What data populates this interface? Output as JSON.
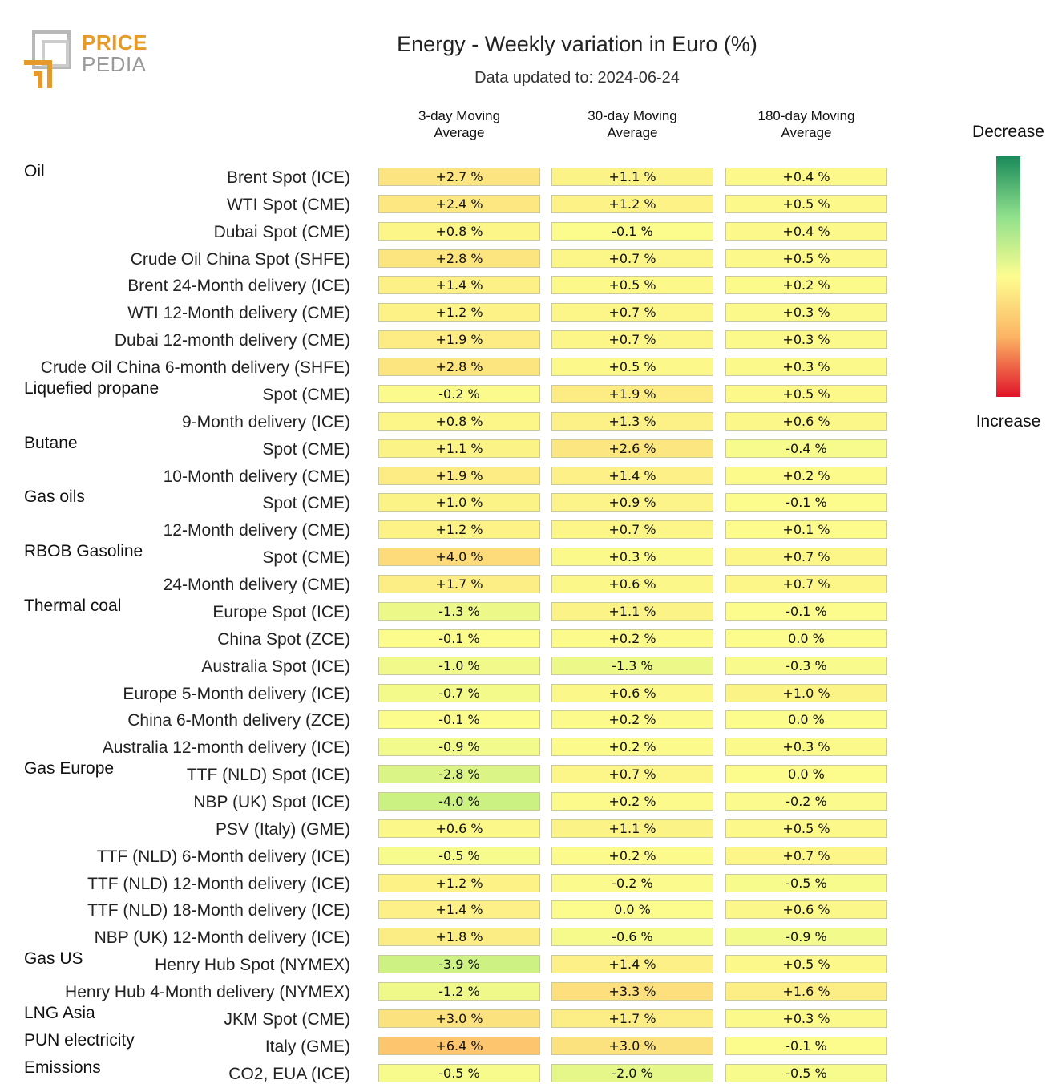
{
  "logo": {
    "line1": "PRICE",
    "line2": "PEDIA"
  },
  "title": "Energy - Weekly variation in Euro (%)",
  "subtitle": "Data updated to: 2024-06-24",
  "legend": {
    "top_label": "Decrease",
    "bottom_label": "Increase"
  },
  "chart_data": {
    "type": "heatmap",
    "title": "Energy - Weekly variation in Euro (%)",
    "subtitle": "Data updated to: 2024-06-24",
    "columns": [
      "3-day Moving\nAverage",
      "30-day Moving\nAverage",
      "180-day Moving\nAverage"
    ],
    "unit": "%",
    "color_scale": {
      "negative": "Decrease",
      "positive": "Increase"
    },
    "groups": [
      {
        "name": "Oil",
        "rows": [
          {
            "label": "Brent Spot (ICE)",
            "values": [
              2.7,
              1.1,
              0.4
            ]
          },
          {
            "label": "WTI Spot (CME)",
            "values": [
              2.4,
              1.2,
              0.5
            ]
          },
          {
            "label": "Dubai Spot (CME)",
            "values": [
              0.8,
              -0.1,
              0.4
            ]
          },
          {
            "label": "Crude Oil China Spot (SHFE)",
            "values": [
              2.8,
              0.7,
              0.5
            ]
          },
          {
            "label": "Brent 24-Month delivery (ICE)",
            "values": [
              1.4,
              0.5,
              0.2
            ]
          },
          {
            "label": "WTI 12-Month delivery (CME)",
            "values": [
              1.2,
              0.7,
              0.3
            ]
          },
          {
            "label": "Dubai 12-month delivery (CME)",
            "values": [
              1.9,
              0.7,
              0.3
            ]
          },
          {
            "label": "Crude Oil China 6-month delivery (SHFE)",
            "values": [
              2.8,
              0.5,
              0.3
            ]
          }
        ]
      },
      {
        "name": "Liquefied propane",
        "rows": [
          {
            "label": "Spot (CME)",
            "values": [
              -0.2,
              1.9,
              0.5
            ]
          },
          {
            "label": "9-Month delivery (ICE)",
            "values": [
              0.8,
              1.3,
              0.6
            ]
          }
        ]
      },
      {
        "name": "Butane",
        "rows": [
          {
            "label": "Spot (CME)",
            "values": [
              1.1,
              2.6,
              -0.4
            ]
          },
          {
            "label": "10-Month delivery (CME)",
            "values": [
              1.9,
              1.4,
              0.2
            ]
          }
        ]
      },
      {
        "name": "Gas oils",
        "rows": [
          {
            "label": "Spot (CME)",
            "values": [
              1.0,
              0.9,
              -0.1
            ]
          },
          {
            "label": "12-Month delivery (CME)",
            "values": [
              1.2,
              0.7,
              0.1
            ]
          }
        ]
      },
      {
        "name": "RBOB Gasoline",
        "rows": [
          {
            "label": "Spot (CME)",
            "values": [
              4.0,
              0.3,
              0.7
            ]
          },
          {
            "label": "24-Month delivery (CME)",
            "values": [
              1.7,
              0.6,
              0.7
            ]
          }
        ]
      },
      {
        "name": "Thermal coal",
        "rows": [
          {
            "label": "Europe Spot (ICE)",
            "values": [
              -1.3,
              1.1,
              -0.1
            ]
          },
          {
            "label": "China Spot (ZCE)",
            "values": [
              -0.1,
              0.2,
              0.0
            ]
          },
          {
            "label": "Australia Spot (ICE)",
            "values": [
              -1.0,
              -1.3,
              -0.3
            ]
          },
          {
            "label": "Europe 5-Month delivery (ICE)",
            "values": [
              -0.7,
              0.6,
              1.0
            ]
          },
          {
            "label": "China 6-Month delivery (ZCE)",
            "values": [
              -0.1,
              0.2,
              0.0
            ]
          },
          {
            "label": "Australia 12-month delivery (ICE)",
            "values": [
              -0.9,
              0.2,
              0.3
            ]
          }
        ]
      },
      {
        "name": "Gas Europe",
        "rows": [
          {
            "label": "TTF (NLD) Spot (ICE)",
            "values": [
              -2.8,
              0.7,
              0.0
            ]
          },
          {
            "label": "NBP (UK) Spot (ICE)",
            "values": [
              -4.0,
              0.2,
              -0.2
            ]
          },
          {
            "label": "PSV (Italy) (GME)",
            "values": [
              0.6,
              1.1,
              0.5
            ]
          },
          {
            "label": "TTF (NLD) 6-Month delivery (ICE)",
            "values": [
              -0.5,
              0.2,
              0.7
            ]
          },
          {
            "label": "TTF (NLD) 12-Month delivery (ICE)",
            "values": [
              1.2,
              -0.2,
              -0.5
            ]
          },
          {
            "label": "TTF (NLD) 18-Month delivery (ICE)",
            "values": [
              1.4,
              0.0,
              0.6
            ]
          },
          {
            "label": "NBP (UK) 12-Month delivery (ICE)",
            "values": [
              1.8,
              -0.6,
              -0.9
            ]
          }
        ]
      },
      {
        "name": "Gas US",
        "rows": [
          {
            "label": "Henry Hub Spot (NYMEX)",
            "values": [
              -3.9,
              1.4,
              0.5
            ]
          },
          {
            "label": "Henry Hub 4-Month delivery (NYMEX)",
            "values": [
              -1.2,
              3.3,
              1.6
            ]
          }
        ]
      },
      {
        "name": "LNG Asia",
        "rows": [
          {
            "label": "JKM Spot (CME)",
            "values": [
              3.0,
              1.7,
              0.3
            ]
          }
        ]
      },
      {
        "name": "PUN electricity",
        "rows": [
          {
            "label": "Italy (GME)",
            "values": [
              6.4,
              3.0,
              -0.1
            ]
          }
        ]
      },
      {
        "name": "Emissions",
        "rows": [
          {
            "label": "CO2, EUA (ICE)",
            "values": [
              -0.5,
              -2.0,
              -0.5
            ]
          }
        ]
      }
    ]
  }
}
